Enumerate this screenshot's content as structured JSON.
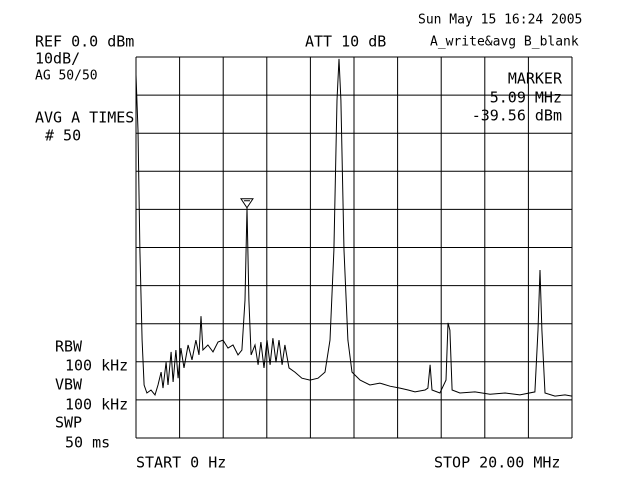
{
  "chart_data": {
    "type": "line",
    "annotations": {
      "ref": "REF 0.0 dBm",
      "scale": "10dB/",
      "avg_gain": "AG 50/50",
      "avg_label": "AVG A TIMES",
      "avg_count": "# 50",
      "attenuation": "ATT 10 dB",
      "timestamp": "Sun May 15 16:24 2005",
      "trace_mode": "A_write&avg B_blank",
      "rbw_label": "RBW",
      "rbw_value": "100 kHz",
      "vbw_label": "VBW",
      "vbw_value": "100 kHz",
      "sweep_label": "SWP",
      "sweep_value": "50 ms",
      "start": "START 0 Hz",
      "stop": "STOP 20.00 MHz"
    },
    "marker": {
      "label": "MARKER",
      "x": 5.09,
      "y": -39.56,
      "x_label": "5.09 MHz",
      "y_label": "-39.56 dBm"
    },
    "xlim": [
      0,
      20
    ],
    "ylim": [
      -100,
      0
    ],
    "xticks": [
      0,
      2,
      4,
      6,
      8,
      10,
      12,
      14,
      16,
      18,
      20
    ],
    "yticks": [
      -100,
      -90,
      -80,
      -70,
      -60,
      -50,
      -40,
      -30,
      -20,
      -10,
      0
    ],
    "grid": true,
    "x": [
      0.0,
      0.09,
      0.18,
      0.28,
      0.37,
      0.5,
      0.69,
      0.87,
      1.01,
      1.15,
      1.24,
      1.38,
      1.47,
      1.61,
      1.7,
      1.83,
      1.93,
      2.06,
      2.2,
      2.39,
      2.57,
      2.75,
      2.89,
      2.98,
      3.07,
      3.3,
      3.53,
      3.76,
      3.99,
      4.22,
      4.45,
      4.68,
      4.86,
      5.0,
      5.09,
      5.18,
      5.28,
      5.46,
      5.6,
      5.73,
      5.87,
      6.01,
      6.15,
      6.28,
      6.42,
      6.56,
      6.7,
      6.83,
      7.02,
      7.29,
      7.61,
      7.98,
      8.35,
      8.67,
      8.9,
      9.08,
      9.22,
      9.31,
      9.4,
      9.54,
      9.72,
      9.91,
      10.28,
      10.73,
      11.19,
      11.65,
      12.11,
      12.48,
      12.8,
      13.26,
      13.39,
      13.49,
      13.58,
      13.94,
      14.22,
      14.31,
      14.4,
      14.5,
      14.86,
      15.55,
      16.24,
      16.93,
      17.61,
      18.3,
      18.44,
      18.53,
      18.62,
      18.76,
      19.22,
      19.68,
      20.0
    ],
    "series": [
      {
        "color": "#000000",
        "values": [
          -4.7,
          -19.2,
          -50.7,
          -74.3,
          -86.1,
          -88.2,
          -87.4,
          -88.7,
          -86.1,
          -82.7,
          -86.9,
          -80.1,
          -86.1,
          -77.4,
          -85.3,
          -76.9,
          -84.3,
          -76.4,
          -81.6,
          -75.6,
          -79.5,
          -74.3,
          -78.2,
          -68.0,
          -76.9,
          -75.6,
          -77.4,
          -74.8,
          -74.3,
          -76.4,
          -75.6,
          -78.2,
          -76.9,
          -63.8,
          -39.6,
          -63.8,
          -78.2,
          -75.6,
          -80.8,
          -74.8,
          -81.6,
          -74.3,
          -80.8,
          -73.8,
          -80.1,
          -74.3,
          -80.8,
          -75.6,
          -81.6,
          -82.7,
          -84.3,
          -84.8,
          -84.3,
          -82.7,
          -74.3,
          -50.7,
          -11.3,
          -0.5,
          -11.3,
          -50.7,
          -74.3,
          -82.7,
          -84.8,
          -86.1,
          -85.6,
          -86.4,
          -86.9,
          -87.4,
          -87.9,
          -87.4,
          -86.9,
          -80.8,
          -87.4,
          -88.2,
          -84.8,
          -69.8,
          -71.7,
          -87.4,
          -88.2,
          -87.9,
          -88.5,
          -88.2,
          -88.7,
          -87.9,
          -71.7,
          -55.9,
          -71.7,
          -88.2,
          -89.0,
          -88.7,
          -89.0
        ]
      }
    ]
  }
}
